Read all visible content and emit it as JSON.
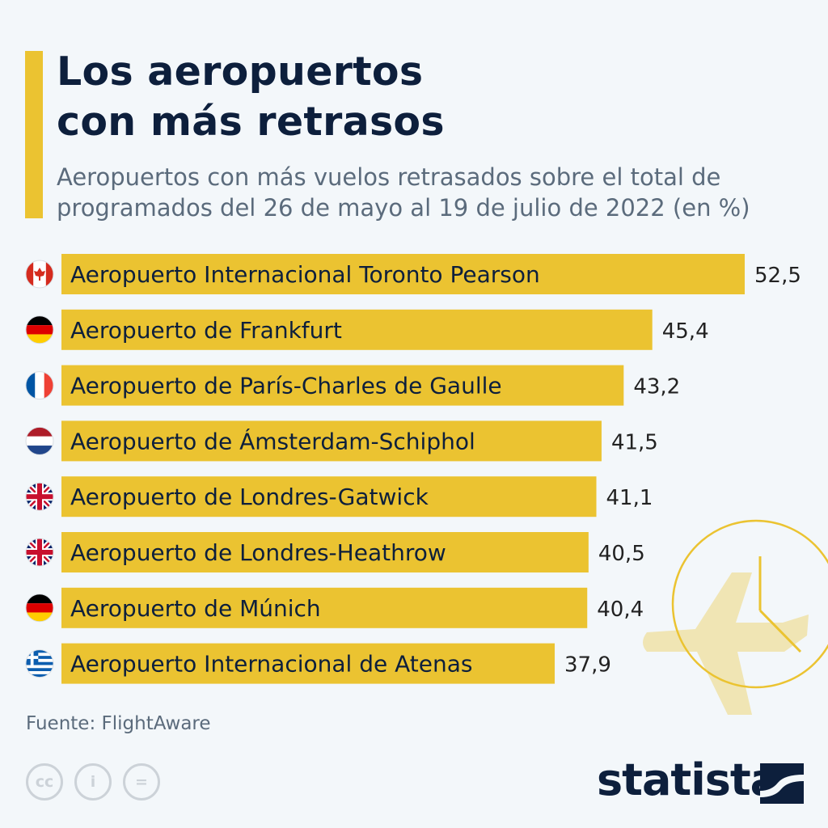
{
  "header": {
    "title_line1": "Los aeropuertos",
    "title_line2": "con más retrasos",
    "subtitle_line1": "Aeropuertos con más vuelos retrasados sobre el total de",
    "subtitle_line2": "programados del 26 de mayo al 19 de julio de 2022 (en %)"
  },
  "chart_data": {
    "type": "bar",
    "orientation": "horizontal",
    "title": "Los aeropuertos con más retrasos",
    "subtitle": "Aeropuertos con más vuelos retrasados sobre el total de programados del 26 de mayo al 19 de julio de 2022 (en %)",
    "xlabel": "",
    "ylabel": "",
    "xlim": [
      0,
      52.5
    ],
    "categories": [
      "Aeropuerto Internacional Toronto Pearson",
      "Aeropuerto de Frankfurt",
      "Aeropuerto de París-Charles de Gaulle",
      "Aeropuerto de Ámsterdam-Schiphol",
      "Aeropuerto de Londres-Gatwick",
      "Aeropuerto de Londres-Heathrow",
      "Aeropuerto de Múnich",
      "Aeropuerto Internacional de Atenas"
    ],
    "values": [
      52.5,
      45.4,
      43.2,
      41.5,
      41.1,
      40.5,
      40.4,
      37.9
    ],
    "value_labels": [
      "52,5",
      "45,4",
      "43,2",
      "41,5",
      "41,1",
      "40,5",
      "40,4",
      "37,9"
    ],
    "flags": [
      "canada",
      "germany",
      "france",
      "netherlands",
      "uk",
      "uk",
      "germany",
      "greece"
    ]
  },
  "colors": {
    "bar": "#ebc331",
    "title": "#0d1f3c",
    "subtitle": "#5b6b7c",
    "background": "#f3f7fa"
  },
  "footer": {
    "source": "Fuente: FlightAware",
    "brand": "statista",
    "license_icons": [
      "cc-icon",
      "by-icon",
      "nd-icon"
    ],
    "license_glyphs": [
      "cc",
      "i",
      "="
    ]
  }
}
